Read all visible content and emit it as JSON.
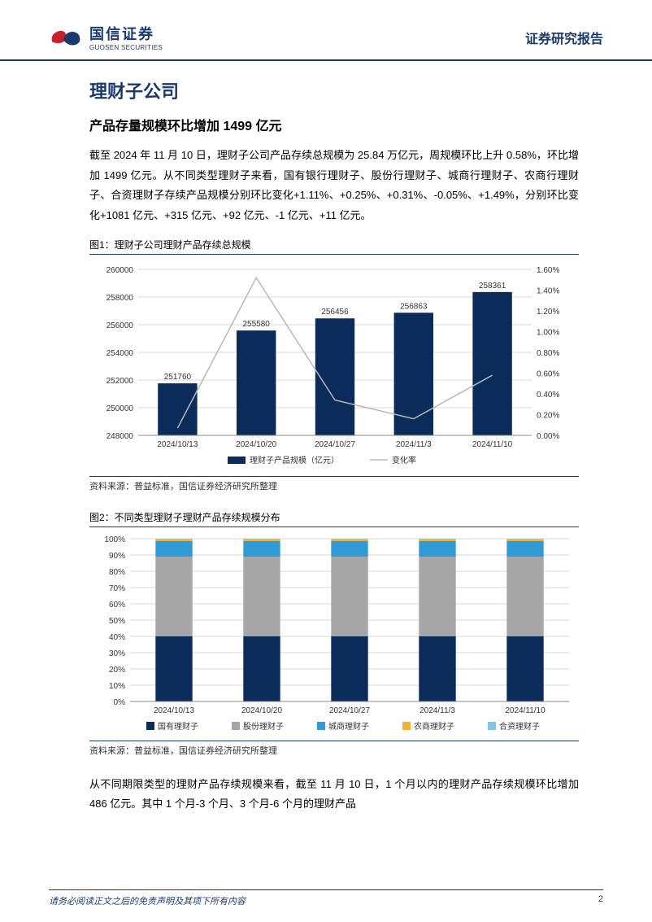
{
  "header": {
    "logo_cn": "国信证券",
    "logo_en": "GUOSEN SECURITIES",
    "report_type": "证券研究报告"
  },
  "section": {
    "title": "理财子公司",
    "subtitle": "产品存量规模环比增加 1499 亿元",
    "para1": "截至 2024 年 11 月 10 日，理财子公司产品存续总规模为 25.84 万亿元，周规模环比上升 0.58%，环比增加 1499 亿元。从不同类型理财子来看，国有银行理财子、股份行理财子、城商行理财子、农商行理财子、合资理财子存续产品规模分别环比变化+1.11%、+0.25%、+0.31%、-0.05%、+1.49%，分别环比变化+1081 亿元、+315 亿元、+92 亿元、-1 亿元、+11 亿元。",
    "para2": "从不同期限类型的理财产品存续规模来看，截至 11 月 10 日，1 个月以内的理财产品存续规模环比增加 486 亿元。其中 1 个月-3 个月、3 个月-6 个月的理财产品"
  },
  "fig1": {
    "title": "图1：理财子公司理财产品存续总规模",
    "type": "bar_line",
    "categories": [
      "2024/10/13",
      "2024/10/20",
      "2024/10/27",
      "2024/11/3",
      "2024/11/10"
    ],
    "bar_values": [
      251760,
      255580,
      256456,
      256863,
      258361
    ],
    "bar_labels": [
      "251760",
      "255580",
      "256456",
      "256863",
      "258361"
    ],
    "line_values": [
      0.0007,
      0.0152,
      0.0034,
      0.0016,
      0.0058
    ],
    "y1_min": 248000,
    "y1_max": 260000,
    "y1_step": 2000,
    "y2_min": 0.0,
    "y2_max": 0.016,
    "y2_step": 0.002,
    "y2_labels": [
      "0.00%",
      "0.20%",
      "0.40%",
      "0.60%",
      "0.80%",
      "1.00%",
      "1.20%",
      "1.40%",
      "1.60%"
    ],
    "bar_color": "#0b2b5a",
    "line_color": "#b8b8b8",
    "grid_color": "#d9d9d9",
    "text_color": "#333333",
    "legend": [
      "理财子产品规模（亿元）",
      "变化率"
    ],
    "source": "资料来源：普益标准，国信证券经济研究所整理"
  },
  "fig2": {
    "title": "图2：不同类型理财子理财产品存续规模分布",
    "type": "stacked_bar",
    "categories": [
      "2024/10/13",
      "2024/10/20",
      "2024/10/27",
      "2024/11/3",
      "2024/11/10"
    ],
    "series": [
      {
        "name": "国有理财子",
        "color": "#0b2b5a",
        "values": [
          0.4,
          0.4,
          0.4,
          0.4,
          0.4
        ]
      },
      {
        "name": "股份理财子",
        "color": "#a6a6a6",
        "values": [
          0.49,
          0.49,
          0.49,
          0.49,
          0.49
        ]
      },
      {
        "name": "城商理财子",
        "color": "#2e9ad6",
        "values": [
          0.095,
          0.095,
          0.095,
          0.095,
          0.095
        ]
      },
      {
        "name": "农商理财子",
        "color": "#f2b233",
        "values": [
          0.012,
          0.012,
          0.012,
          0.012,
          0.012
        ]
      },
      {
        "name": "合资理财子",
        "color": "#7ec6e8",
        "values": [
          0.003,
          0.003,
          0.003,
          0.003,
          0.003
        ]
      }
    ],
    "y_min": 0,
    "y_max": 1.0,
    "y_step": 0.1,
    "y_labels": [
      "0%",
      "10%",
      "20%",
      "30%",
      "40%",
      "50%",
      "60%",
      "70%",
      "80%",
      "90%",
      "100%"
    ],
    "grid_color": "#d9d9d9",
    "text_color": "#333333",
    "source": "资料来源：普益标准，国信证券经济研究所整理"
  },
  "footer": {
    "disclaimer": "请务必阅读正文之后的免责声明及其项下所有内容",
    "page": "2"
  }
}
